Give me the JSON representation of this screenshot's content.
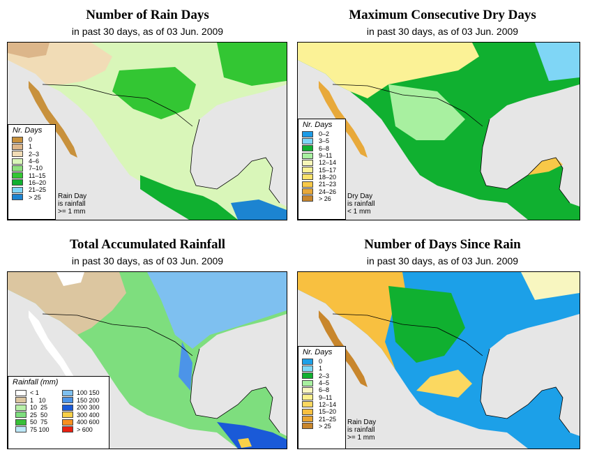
{
  "panels": [
    {
      "title": "Number of Rain Days",
      "subtitle": "in past 30 days, as of  03 Jun. 2009",
      "legend_title": "Nr. Days",
      "legend": [
        {
          "label": "0",
          "color": "#c8913c"
        },
        {
          "label": "1",
          "color": "#dcb68a"
        },
        {
          "label": "2–3",
          "color": "#f1dcb6"
        },
        {
          "label": "4–6",
          "color": "#d9f6b9"
        },
        {
          "label": "7–10",
          "color": "#8ee07e"
        },
        {
          "label": "11–15",
          "color": "#33c633"
        },
        {
          "label": "16–20",
          "color": "#10b030"
        },
        {
          "label": "21–25",
          "color": "#7fd5f6"
        },
        {
          "label": "> 25",
          "color": "#1c84d1"
        }
      ],
      "note": [
        "Rain Day",
        "is rainfall",
        ">= 1 mm"
      ]
    },
    {
      "title": "Maximum Consecutive Dry Days",
      "subtitle": "in past 30 days, as of  03 Jun. 2009",
      "legend_title": "Nr. Days",
      "legend": [
        {
          "label": "0–2",
          "color": "#1c9be6"
        },
        {
          "label": "3–5",
          "color": "#7fd6f6"
        },
        {
          "label": "6–8",
          "color": "#10b030"
        },
        {
          "label": "9–11",
          "color": "#a8f0a0"
        },
        {
          "label": "12–14",
          "color": "#f6f6b8"
        },
        {
          "label": "15–17",
          "color": "#fbf296"
        },
        {
          "label": "18–20",
          "color": "#fbe26a"
        },
        {
          "label": "21–23",
          "color": "#f8c848"
        },
        {
          "label": "24–26",
          "color": "#e8a93a"
        },
        {
          "label": "> 26",
          "color": "#c8862c"
        }
      ],
      "note": [
        "Dry Day",
        "is rainfall",
        "< 1 mm"
      ]
    },
    {
      "title": "Total Accumulated Rainfall",
      "subtitle": "in past 30 days, as of  03 Jun. 2009",
      "legend_title": "Rainfall (mm)",
      "legend_left": [
        {
          "lo": "",
          "hi": "< 1",
          "color": "#ffffff"
        },
        {
          "lo": "1",
          "hi": "10",
          "color": "#dcc6a0"
        },
        {
          "lo": "10",
          "hi": "25",
          "color": "#b8f0a8"
        },
        {
          "lo": "25",
          "hi": "50",
          "color": "#7ede7e"
        },
        {
          "lo": "50",
          "hi": "75",
          "color": "#38c038"
        },
        {
          "lo": "75",
          "hi": "100",
          "color": "#bde8f8"
        }
      ],
      "legend_right": [
        {
          "lo": "100",
          "hi": "150",
          "color": "#7ec0f0"
        },
        {
          "lo": "150",
          "hi": "200",
          "color": "#4c94e8"
        },
        {
          "lo": "200",
          "hi": "300",
          "color": "#1a5ad8"
        },
        {
          "lo": "300",
          "hi": "400",
          "color": "#f8d048"
        },
        {
          "lo": "400",
          "hi": "600",
          "color": "#f89020"
        },
        {
          "lo": "> 600",
          "hi": "",
          "color": "#e82010"
        }
      ]
    },
    {
      "title": "Number of Days Since Rain",
      "subtitle": "in past 30 days, as of  03 Jun. 2009",
      "legend_title": "Nr. Days",
      "legend": [
        {
          "label": "0",
          "color": "#1ca0e8"
        },
        {
          "label": "1",
          "color": "#7ed8f6"
        },
        {
          "label": "2–3",
          "color": "#10b030"
        },
        {
          "label": "4–5",
          "color": "#a8f0a0"
        },
        {
          "label": "6–8",
          "color": "#f8f6c0"
        },
        {
          "label": "9–11",
          "color": "#fbf08c"
        },
        {
          "label": "12–14",
          "color": "#fbd860"
        },
        {
          "label": "15–20",
          "color": "#f8c040"
        },
        {
          "label": "21–25",
          "color": "#e8a430"
        },
        {
          "label": "> 25",
          "color": "#c8862c"
        }
      ],
      "note": [
        "Rain Day",
        "is rainfall",
        ">= 1 mm"
      ]
    }
  ]
}
